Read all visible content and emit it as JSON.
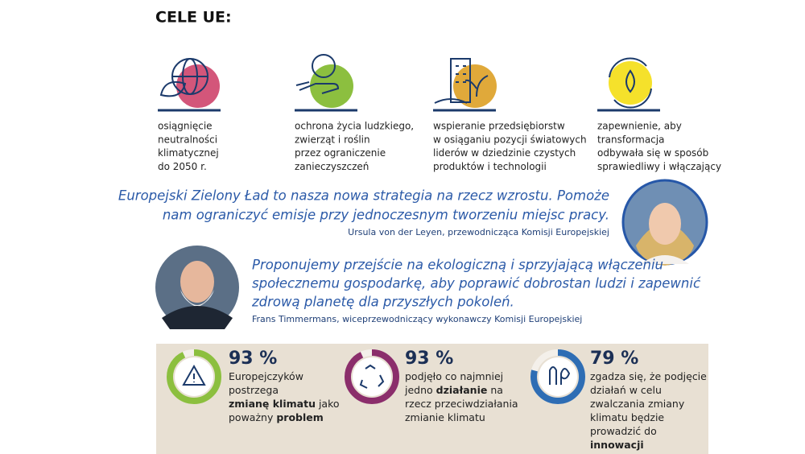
{
  "heading": "CELE UE:",
  "goals": [
    {
      "lines": [
        "osiągnięcie",
        "neutralności",
        "klimatycznej",
        "do 2050 r."
      ]
    },
    {
      "lines": [
        "ochrona życia ludzkiego,",
        "zwierząt i roślin",
        "przez ograniczenie",
        "zanieczyszczeń"
      ]
    },
    {
      "lines": [
        "wspieranie przedsiębiorstw",
        "w osiąganiu pozycji światowych",
        "liderów w dziedzinie czystych",
        "produktów i technologii"
      ]
    },
    {
      "lines": [
        "zapewnienie, aby",
        "transformacja",
        "odbywała się w sposób",
        "sprawiedliwy i włączający"
      ]
    }
  ],
  "quotes": [
    {
      "lines": [
        "Europejski Zielony Ład to nasza nowa strategia na rzecz wzrostu. Pomoże",
        "nam ograniczyć emisje przy jednoczesnym tworzeniu miejsc pracy."
      ],
      "author": "Ursula von der Leyen, przewodnicząca Komisji Europejskiej"
    },
    {
      "lines": [
        "Proponujemy przejście na ekologiczną i sprzyjającą włączeniu",
        "społecznemu gospodarkę, aby poprawić dobrostan ludzi i zapewnić",
        "zdrową planetę dla przyszłych pokoleń."
      ],
      "author": "Frans Timmermans, wiceprzewodniczący wykonawczy Komisji Europejskiej"
    }
  ],
  "stats": [
    {
      "percent": {
        "value": 93,
        "label": "93 %"
      },
      "lines": [
        [
          "Europejczyków"
        ],
        [
          "postrzega"
        ],
        [
          "zmianę klimatu",
          " jako"
        ],
        [
          "poważny ",
          "problem"
        ]
      ]
    },
    {
      "percent": {
        "value": 93,
        "label": "93 %"
      },
      "lines": [
        [
          "podjęło co najmniej"
        ],
        [
          "jedno ",
          "działanie",
          " na"
        ],
        [
          "rzecz przeciwdziałania"
        ],
        [
          "zmianie klimatu"
        ]
      ]
    },
    {
      "percent": {
        "value": 79,
        "label": "79 %"
      },
      "lines": [
        [
          "zgadza się, że podjęcie"
        ],
        [
          "działań w celu"
        ],
        [
          "zwalczania zmiany"
        ],
        [
          "klimatu będzie"
        ],
        [
          "prowadzić do"
        ],
        [
          "innowacji"
        ]
      ]
    }
  ]
}
